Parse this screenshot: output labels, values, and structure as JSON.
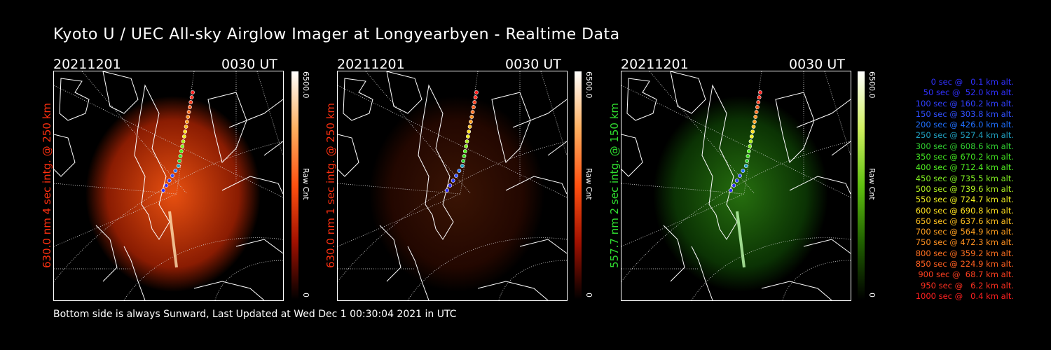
{
  "title": "Kyoto U / UEC All-sky Airglow Imager at Longyearbyen - Realtime Data",
  "panels": [
    {
      "date": "20211201",
      "time": "0030 UT",
      "side_label": "630.0 nm 4 sec intg. @ 250 km",
      "side_color": "#ff3010",
      "cbar_top": "6500.0",
      "cbar_unit": "Raw Cnt",
      "cbar_zero": "0",
      "theme": "red",
      "brightness": 1.0
    },
    {
      "date": "20211201",
      "time": "0030 UT",
      "side_label": "630.0 nm 1 sec intg. @ 250 km",
      "side_color": "#ff3010",
      "cbar_top": "6500.0",
      "cbar_unit": "Raw Cnt",
      "cbar_zero": "0",
      "theme": "red",
      "brightness": 0.25
    },
    {
      "date": "20211201",
      "time": "0030 UT",
      "side_label": "557.7 nm 2 sec intg. @ 150 km",
      "side_color": "#30e030",
      "cbar_top": "6500.0",
      "cbar_unit": "Raw Cnt",
      "cbar_zero": "0",
      "theme": "green",
      "brightness": 0.9
    }
  ],
  "legend": [
    {
      "text": "0 sec @   0.1 km alt.",
      "color": "#3030ff"
    },
    {
      "text": "50 sec @  52.0 km alt.",
      "color": "#3030ff"
    },
    {
      "text": "100 sec @ 160.2 km alt.",
      "color": "#3040ff"
    },
    {
      "text": "150 sec @ 303.8 km alt.",
      "color": "#3050ff"
    },
    {
      "text": "200 sec @ 426.0 km alt.",
      "color": "#2070ff"
    },
    {
      "text": "250 sec @ 527.4 km alt.",
      "color": "#20a0c0"
    },
    {
      "text": "300 sec @ 608.6 km alt.",
      "color": "#30d030"
    },
    {
      "text": "350 sec @ 670.2 km alt.",
      "color": "#40e020"
    },
    {
      "text": "400 sec @ 712.4 km alt.",
      "color": "#50f020"
    },
    {
      "text": "450 sec @ 735.5 km alt.",
      "color": "#80f020"
    },
    {
      "text": "500 sec @ 739.6 km alt.",
      "color": "#b0f020"
    },
    {
      "text": "550 sec @ 724.7 km alt.",
      "color": "#f0f020"
    },
    {
      "text": "600 sec @ 690.8 km alt.",
      "color": "#ffe020"
    },
    {
      "text": "650 sec @ 637.6 km alt.",
      "color": "#ffc020"
    },
    {
      "text": "700 sec @ 564.9 km alt.",
      "color": "#ffa020"
    },
    {
      "text": "750 sec @ 472.3 km alt.",
      "color": "#ff9020"
    },
    {
      "text": "800 sec @ 359.2 km alt.",
      "color": "#ff7020"
    },
    {
      "text": "850 sec @ 224.9 km alt.",
      "color": "#ff6020"
    },
    {
      "text": "900 sec @  68.7 km alt.",
      "color": "#ff4020"
    },
    {
      "text": "950 sec @   6.2 km alt.",
      "color": "#ff3020"
    },
    {
      "text": "1000 sec @   0.4 km alt.",
      "color": "#ff2020"
    }
  ],
  "footer": "Bottom side is always Sunward, Last Updated at Wed Dec  1 00:30:04 2021 in UTC"
}
